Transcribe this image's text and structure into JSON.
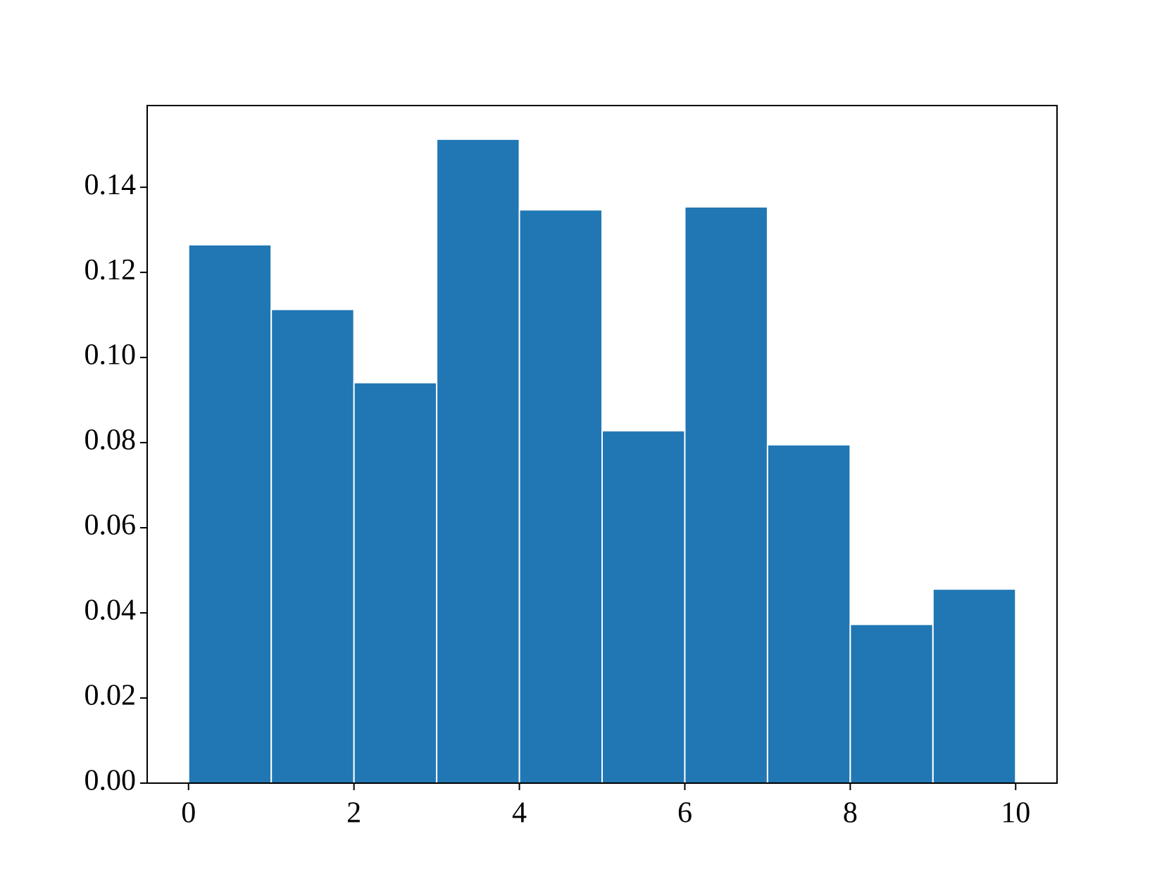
{
  "chart_data": {
    "type": "histogram",
    "bins": [
      0,
      1,
      2,
      3,
      4,
      5,
      6,
      7,
      8,
      9,
      10
    ],
    "values": [
      0.1265,
      0.1113,
      0.0941,
      0.1513,
      0.1347,
      0.0828,
      0.1354,
      0.0795,
      0.0373,
      0.0456
    ],
    "color": "#2077b4",
    "xlim": [
      -0.5,
      10.5
    ],
    "xticks": [
      0,
      2,
      4,
      6,
      8,
      10
    ],
    "ylim": [
      0,
      0.1592
    ],
    "yticks": [
      {
        "value": 0,
        "label": "0.00"
      },
      {
        "value": 0.02,
        "label": "0.02"
      },
      {
        "value": 0.04,
        "label": "0.04"
      },
      {
        "value": 0.06,
        "label": "0.06"
      },
      {
        "value": 0.08,
        "label": "0.08"
      },
      {
        "value": 0.1,
        "label": "0.10"
      },
      {
        "value": 0.12,
        "label": "0.12"
      },
      {
        "value": 0.14,
        "label": "0.14"
      }
    ],
    "grid": false
  }
}
